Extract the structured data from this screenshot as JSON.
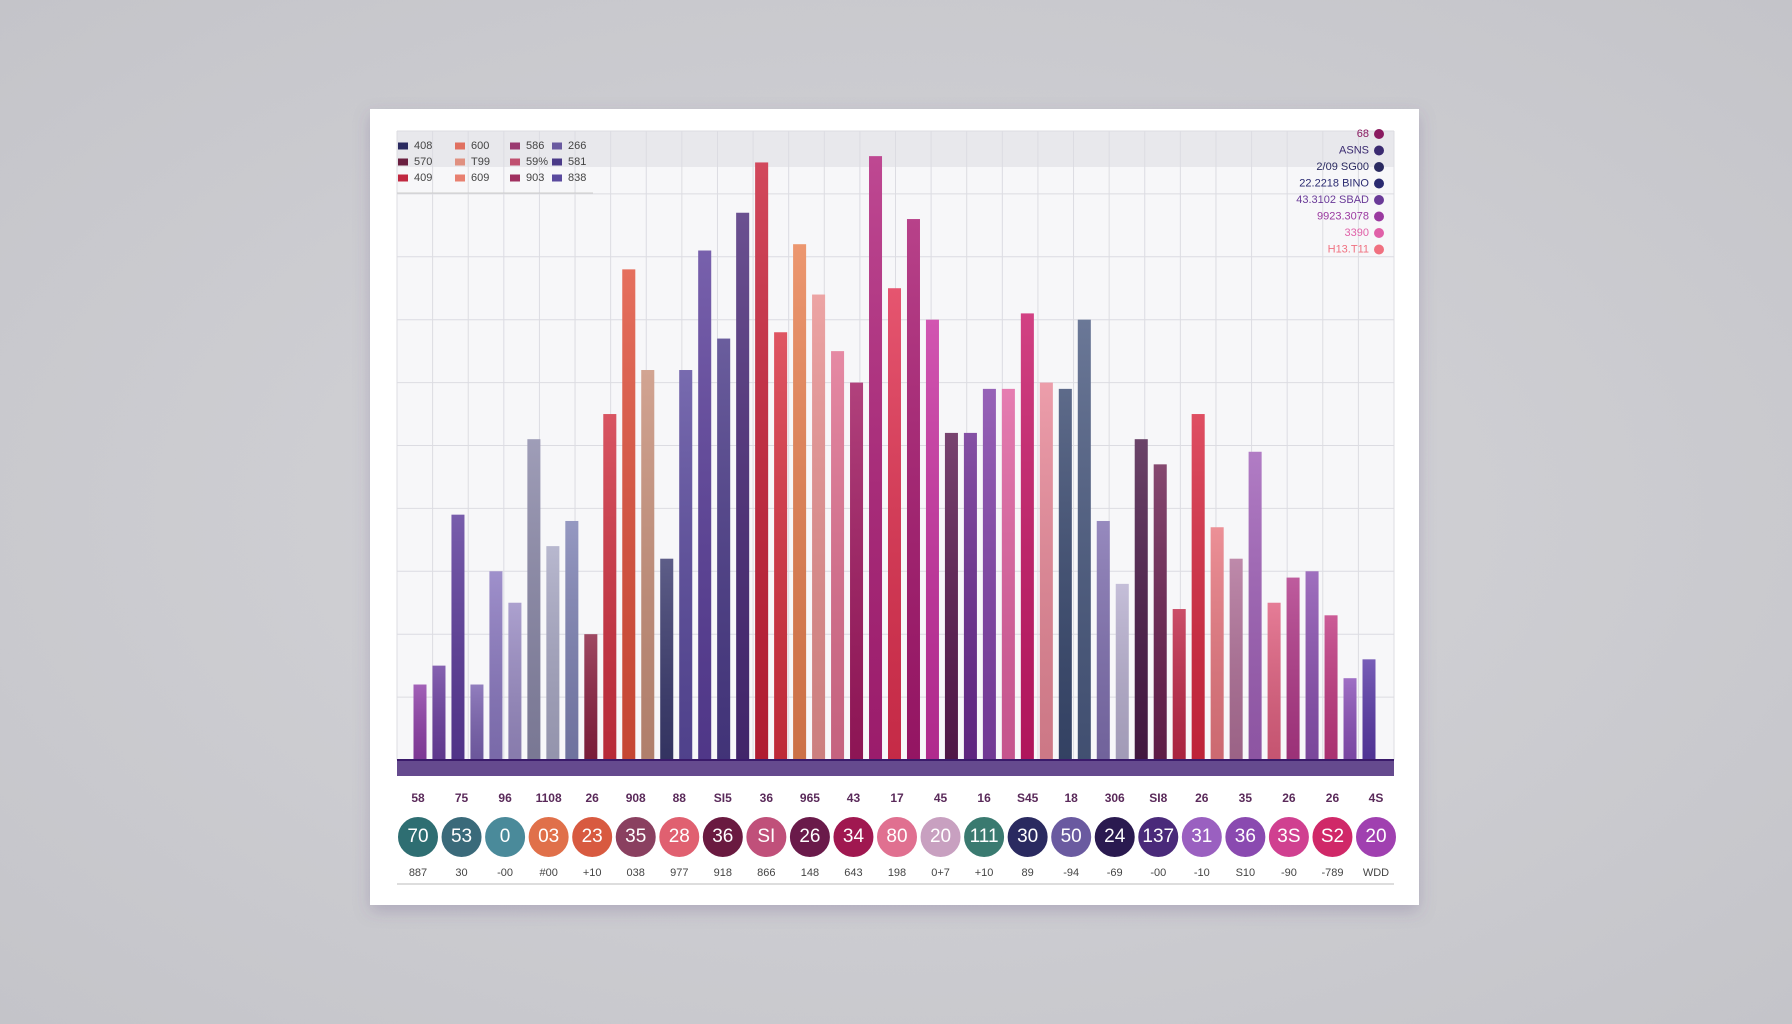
{
  "chart_data": {
    "type": "bar",
    "ylim": [
      0,
      100
    ],
    "yticks": [
      0,
      10,
      20,
      30,
      40,
      50,
      60,
      70,
      80,
      90,
      100
    ],
    "grid": true,
    "values": [
      12,
      15,
      39,
      12,
      30,
      25,
      51,
      34,
      38,
      20,
      55,
      78,
      62,
      32,
      62,
      81,
      67,
      87,
      95,
      68,
      82,
      74,
      65,
      60,
      96,
      75,
      86,
      70,
      52,
      52,
      59,
      59,
      71,
      60,
      59,
      70,
      38,
      28,
      51,
      47,
      24,
      55,
      37,
      32,
      49,
      25,
      29,
      30,
      23,
      13,
      16
    ],
    "colors": [
      "#8e3fa8",
      "#6b3fa0",
      "#5b3a9a",
      "#7a62b0",
      "#8a78c0",
      "#9a8cc4",
      "#8a88a8",
      "#a8a8c4",
      "#7e82b4",
      "#8a2040",
      "#d03040",
      "#e0503a",
      "#c8907a",
      "#3a3a6e",
      "#5a4a9e",
      "#5a3e9a",
      "#4a3a88",
      "#4a2a78",
      "#c82038",
      "#d83040",
      "#e88050",
      "#e89090",
      "#e07090",
      "#a01860",
      "#b0207a",
      "#e03050",
      "#a81870",
      "#c830a0",
      "#5a1a50",
      "#6a2a90",
      "#8040a8",
      "#e060a0",
      "#c81868",
      "#e88898",
      "#3a4a70",
      "#4a5a80",
      "#8070b0",
      "#b8b0d0",
      "#4a1a48",
      "#6a2050",
      "#c02848",
      "#d82840",
      "#e87880",
      "#b07098",
      "#a060b8",
      "#e06080",
      "#b03888",
      "#8a50b0",
      "#c03880",
      "#8a50b8",
      "#5a3aa8"
    ],
    "legend_left": [
      [
        {
          "label": "408",
          "color": "#2a2a60"
        },
        {
          "label": "600",
          "color": "#e07060"
        },
        {
          "label": "586",
          "color": "#9a3a70"
        },
        {
          "label": "266",
          "color": "#6a5aa0"
        }
      ],
      [
        {
          "label": "570",
          "color": "#6a2040"
        },
        {
          "label": "T99",
          "color": "#e09080"
        },
        {
          "label": "59%",
          "color": "#c05070"
        },
        {
          "label": "581",
          "color": "#4a3a88"
        }
      ],
      [
        {
          "label": "409",
          "color": "#c02840"
        },
        {
          "label": "609",
          "color": "#e88070"
        },
        {
          "label": "903",
          "color": "#a03060"
        },
        {
          "label": "838",
          "color": "#5a4a9e"
        }
      ]
    ],
    "legend_right": [
      {
        "label": "68",
        "color": "#8a1a60"
      },
      {
        "label": "ASNS",
        "color": "#3a2a70"
      },
      {
        "label": "2/09 SG00",
        "color": "#2a2a60"
      },
      {
        "label": "22.2218 BINO",
        "color": "#2a2a70"
      },
      {
        "label": "43.3102 SBAD",
        "color": "#6a3a98"
      },
      {
        "label": "9923.3078",
        "color": "#9a3aa0"
      },
      {
        "label": "3390",
        "color": "#e060a8"
      },
      {
        "label": "H13.T11",
        "color": "#f07080"
      }
    ],
    "top_labels": [
      "58",
      "75",
      "96",
      "1108",
      "26",
      "908",
      "88",
      "SI5",
      "36",
      "965",
      "43",
      "17",
      "45",
      "16",
      "S45",
      "18",
      "306",
      "SI8",
      "26",
      "35",
      "26",
      "26",
      "4S"
    ],
    "badges": [
      {
        "label": "70",
        "color": "#2e6e72"
      },
      {
        "label": "53",
        "color": "#3a6a7a"
      },
      {
        "label": "0",
        "color": "#4a8a9a"
      },
      {
        "label": "03",
        "color": "#e0704a"
      },
      {
        "label": "23",
        "color": "#d85a40"
      },
      {
        "label": "35",
        "color": "#8a4060"
      },
      {
        "label": "28",
        "color": "#e06070"
      },
      {
        "label": "36",
        "color": "#6a1a40"
      },
      {
        "label": "SI",
        "color": "#c0507a"
      },
      {
        "label": "26",
        "color": "#6a1a4a"
      },
      {
        "label": "34",
        "color": "#a01850"
      },
      {
        "label": "80",
        "color": "#e07090"
      },
      {
        "label": "20",
        "color": "#c8a0c0"
      },
      {
        "label": "111",
        "color": "#3a7a70"
      },
      {
        "label": "30",
        "color": "#2a2a60"
      },
      {
        "label": "50",
        "color": "#6a5aa0"
      },
      {
        "label": "24",
        "color": "#2a1a50"
      },
      {
        "label": "137",
        "color": "#4a2a7a"
      },
      {
        "label": "31",
        "color": "#9a60c0"
      },
      {
        "label": "36",
        "color": "#8a4ab0"
      },
      {
        "label": "3S",
        "color": "#d04090"
      },
      {
        "label": "S2",
        "color": "#d02868"
      },
      {
        "label": "20",
        "color": "#a040b0"
      }
    ],
    "bottom_labels": [
      "887",
      "30",
      "-00",
      "#00",
      "+10",
      "038",
      "977",
      "918",
      "866",
      "148",
      "643",
      "198",
      "0+7",
      "+10",
      "89",
      "-94",
      "-69",
      "-00",
      "-10",
      "S10",
      "-90",
      "-789",
      "WDD"
    ]
  }
}
